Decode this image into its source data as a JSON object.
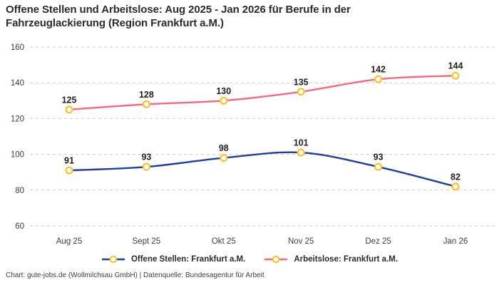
{
  "title": "Offene Stellen und Arbeitslose: Aug 2025 - Jan 2026 für Berufe in der Fahrzeuglackierung (Region Frankfurt a.M.)",
  "footer": "Chart: gute-jobs.de (Wollmilchsau GmbH) | Datenquelle: Bundesagentur für Arbeit",
  "colors": {
    "offene_stellen_line": "#1e3fa1",
    "arbeitslose_line": "#f8677f",
    "marker_stroke": "#fdc32f",
    "marker_fill": "#ffffff",
    "grid": "#c9c9c9",
    "axis_text": "#3f3f3f",
    "data_label_text": "#1f1f1f",
    "title_text": "#2b2b2b"
  },
  "chart_data": {
    "type": "line",
    "title": "Offene Stellen und Arbeitslose: Aug 2025 - Jan 2026 für Berufe in der Fahrzeuglackierung (Region Frankfurt a.M.)",
    "categories": [
      "Aug 25",
      "Sept 25",
      "Okt 25",
      "Nov 25",
      "Dez 25",
      "Jan 26"
    ],
    "series": [
      {
        "name": "Offene Stellen: Frankfurt a.M.",
        "color": "#1e3fa1",
        "values": [
          91,
          93,
          98,
          101,
          93,
          82
        ]
      },
      {
        "name": "Arbeitslose: Frankfurt a.M.",
        "color": "#f8677f",
        "values": [
          125,
          128,
          130,
          135,
          142,
          144
        ]
      }
    ],
    "ylim": [
      60,
      160
    ],
    "yticks": [
      60,
      80,
      100,
      120,
      140,
      160
    ],
    "xlabel": "",
    "ylabel": "",
    "grid": "horizontal-dashed",
    "legend_position": "bottom",
    "data_labels": true,
    "marker": "open-circle-yellow"
  }
}
